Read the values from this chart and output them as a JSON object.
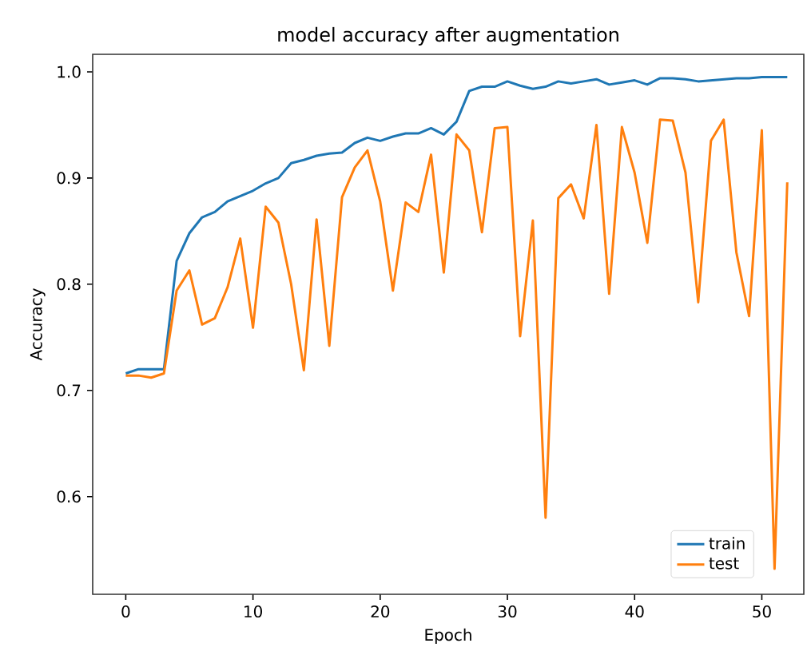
{
  "chart_data": {
    "type": "line",
    "title": "model accuracy after augmentation",
    "xlabel": "Epoch",
    "ylabel": "Accuracy",
    "x": [
      0,
      1,
      2,
      3,
      4,
      5,
      6,
      7,
      8,
      9,
      10,
      11,
      12,
      13,
      14,
      15,
      16,
      17,
      18,
      19,
      20,
      21,
      22,
      23,
      24,
      25,
      26,
      27,
      28,
      29,
      30,
      31,
      32,
      33,
      34,
      35,
      36,
      37,
      38,
      39,
      40,
      41,
      42,
      43,
      44,
      45,
      46,
      47,
      48,
      49,
      50,
      51,
      52
    ],
    "series": [
      {
        "name": "train",
        "color": "#1f77b4",
        "values": [
          0.716,
          0.72,
          0.72,
          0.72,
          0.822,
          0.848,
          0.863,
          0.868,
          0.878,
          0.883,
          0.888,
          0.895,
          0.9,
          0.914,
          0.917,
          0.921,
          0.923,
          0.924,
          0.933,
          0.938,
          0.935,
          0.939,
          0.942,
          0.942,
          0.947,
          0.941,
          0.953,
          0.982,
          0.986,
          0.986,
          0.991,
          0.987,
          0.984,
          0.986,
          0.991,
          0.989,
          0.991,
          0.993,
          0.988,
          0.99,
          0.992,
          0.988,
          0.994,
          0.994,
          0.993,
          0.991,
          0.992,
          0.993,
          0.994,
          0.994,
          0.995,
          0.995,
          0.995
        ]
      },
      {
        "name": "test",
        "color": "#ff7f0e",
        "values": [
          0.714,
          0.714,
          0.712,
          0.716,
          0.794,
          0.813,
          0.762,
          0.768,
          0.797,
          0.843,
          0.759,
          0.873,
          0.858,
          0.8,
          0.719,
          0.861,
          0.742,
          0.882,
          0.91,
          0.926,
          0.878,
          0.794,
          0.877,
          0.868,
          0.922,
          0.811,
          0.941,
          0.926,
          0.849,
          0.947,
          0.948,
          0.751,
          0.86,
          0.58,
          0.881,
          0.894,
          0.862,
          0.95,
          0.791,
          0.948,
          0.905,
          0.839,
          0.955,
          0.954,
          0.905,
          0.783,
          0.935,
          0.955,
          0.83,
          0.77,
          0.945,
          0.532,
          0.896
        ]
      }
    ],
    "xlim": [
      -2.6,
      53.3
    ],
    "ylim": [
      0.508,
      1.0165
    ],
    "xticks": [
      0,
      10,
      20,
      30,
      40,
      50
    ],
    "yticks": [
      0.6,
      0.7,
      0.8,
      0.9,
      {
        "value": 1.0,
        "label": "1.0"
      }
    ],
    "legend": "bottom right",
    "grid": false,
    "marker": "none",
    "line_style": "solid"
  }
}
